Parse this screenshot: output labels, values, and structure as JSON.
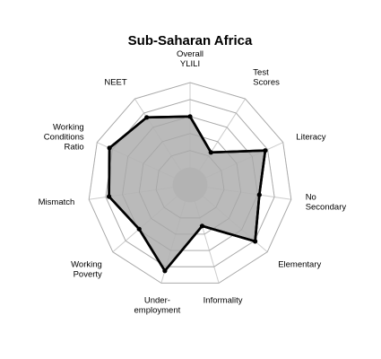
{
  "chart_data": {
    "type": "radar",
    "title": "Sub-Saharan Africa",
    "axes": [
      [
        "Overall",
        "YLILI"
      ],
      [
        "Test",
        "Scores"
      ],
      [
        "Literacy"
      ],
      [
        "No",
        "Secondary"
      ],
      [
        "Elementary"
      ],
      [
        "Informality"
      ],
      [
        "Under-",
        "employment"
      ],
      [
        "Working",
        "Poverty"
      ],
      [
        "Mismatch"
      ],
      [
        "Working",
        "Conditions",
        "Ratio"
      ],
      [
        "NEET"
      ]
    ],
    "values": [
      0.6,
      0.25,
      0.77,
      0.62,
      0.81,
      0.3,
      0.85,
      0.59,
      0.76,
      0.84,
      0.74
    ],
    "rmax": 1,
    "rings": 5,
    "colors": {
      "fill": "#b3b3b3",
      "line": "#000000",
      "grid": "#cccccc",
      "center": "#b3b3b3"
    }
  }
}
